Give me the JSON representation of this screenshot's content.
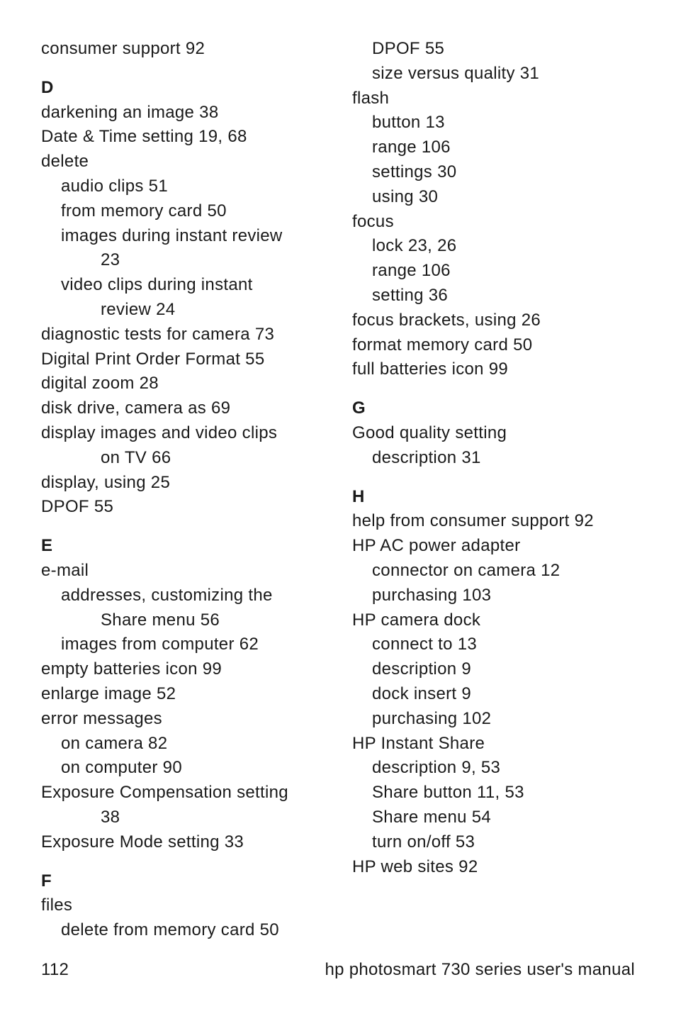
{
  "colors": {
    "background": "#ffffff",
    "text": "#1a1a1a"
  },
  "typography": {
    "font_family": "Arial, Helvetica, sans-serif",
    "font_size_pt": 18,
    "line_height": 1.45
  },
  "left_column": {
    "top_entry": "consumer support 92",
    "sections": [
      {
        "letter": "D",
        "entries": [
          {
            "text": "darkening an image 38",
            "level": 0
          },
          {
            "text": "Date & Time setting 19, 68",
            "level": 0
          },
          {
            "text": "delete",
            "level": 0
          },
          {
            "text": "audio clips 51",
            "level": 1
          },
          {
            "text": "from memory card 50",
            "level": 1
          },
          {
            "text": "images during instant review",
            "level": 1
          },
          {
            "text": "23",
            "level": 2
          },
          {
            "text": "video clips during instant",
            "level": 1
          },
          {
            "text": "review 24",
            "level": 2
          },
          {
            "text": "diagnostic tests for camera 73",
            "level": 0
          },
          {
            "text": "Digital Print Order Format 55",
            "level": 0
          },
          {
            "text": "digital zoom 28",
            "level": 0
          },
          {
            "text": "disk drive, camera as 69",
            "level": 0
          },
          {
            "text": "display images and video clips",
            "level": 0
          },
          {
            "text": "on TV 66",
            "level": 2
          },
          {
            "text": "display, using 25",
            "level": 0
          },
          {
            "text": "DPOF 55",
            "level": 0
          }
        ]
      },
      {
        "letter": "E",
        "entries": [
          {
            "text": "e-mail",
            "level": 0
          },
          {
            "text": "addresses, customizing the",
            "level": 1
          },
          {
            "text": "Share menu 56",
            "level": 2
          },
          {
            "text": "images from computer 62",
            "level": 1
          },
          {
            "text": "empty batteries icon 99",
            "level": 0
          },
          {
            "text": "enlarge image 52",
            "level": 0
          },
          {
            "text": "error messages",
            "level": 0
          },
          {
            "text": "on camera 82",
            "level": 1
          },
          {
            "text": "on computer 90",
            "level": 1
          },
          {
            "text": "Exposure Compensation setting",
            "level": 0
          },
          {
            "text": "38",
            "level": 2
          },
          {
            "text": "Exposure Mode setting 33",
            "level": 0
          }
        ]
      },
      {
        "letter": "F",
        "entries": [
          {
            "text": "files",
            "level": 0
          },
          {
            "text": "delete from memory card 50",
            "level": 1
          }
        ]
      }
    ]
  },
  "right_column": {
    "top_entries": [
      {
        "text": "DPOF 55",
        "level": 1
      },
      {
        "text": "size versus quality 31",
        "level": 1
      },
      {
        "text": "flash",
        "level": 0
      },
      {
        "text": "button 13",
        "level": 1
      },
      {
        "text": "range 106",
        "level": 1
      },
      {
        "text": "settings 30",
        "level": 1
      },
      {
        "text": "using 30",
        "level": 1
      },
      {
        "text": "focus",
        "level": 0
      },
      {
        "text": "lock 23, 26",
        "level": 1
      },
      {
        "text": "range 106",
        "level": 1
      },
      {
        "text": "setting 36",
        "level": 1
      },
      {
        "text": "focus brackets, using 26",
        "level": 0
      },
      {
        "text": "format memory card 50",
        "level": 0
      },
      {
        "text": "full batteries icon 99",
        "level": 0
      }
    ],
    "sections": [
      {
        "letter": "G",
        "entries": [
          {
            "text": "Good quality setting",
            "level": 0
          },
          {
            "text": "description 31",
            "level": 1
          }
        ]
      },
      {
        "letter": "H",
        "entries": [
          {
            "text": "help from consumer support 92",
            "level": 0
          },
          {
            "text": "HP AC power adapter",
            "level": 0
          },
          {
            "text": "connector on camera 12",
            "level": 1
          },
          {
            "text": "purchasing 103",
            "level": 1
          },
          {
            "text": "HP camera dock",
            "level": 0
          },
          {
            "text": "connect to 13",
            "level": 1
          },
          {
            "text": "description 9",
            "level": 1
          },
          {
            "text": "dock insert 9",
            "level": 1
          },
          {
            "text": "purchasing 102",
            "level": 1
          },
          {
            "text": "HP Instant Share",
            "level": 0
          },
          {
            "text": "description 9, 53",
            "level": 1
          },
          {
            "text": "Share button 11, 53",
            "level": 1
          },
          {
            "text": "Share menu 54",
            "level": 1
          },
          {
            "text": "turn on/off 53",
            "level": 1
          },
          {
            "text": "HP web sites 92",
            "level": 0
          }
        ]
      }
    ]
  },
  "footer": {
    "page_number": "112",
    "title": "hp photosmart 730 series user's manual"
  }
}
